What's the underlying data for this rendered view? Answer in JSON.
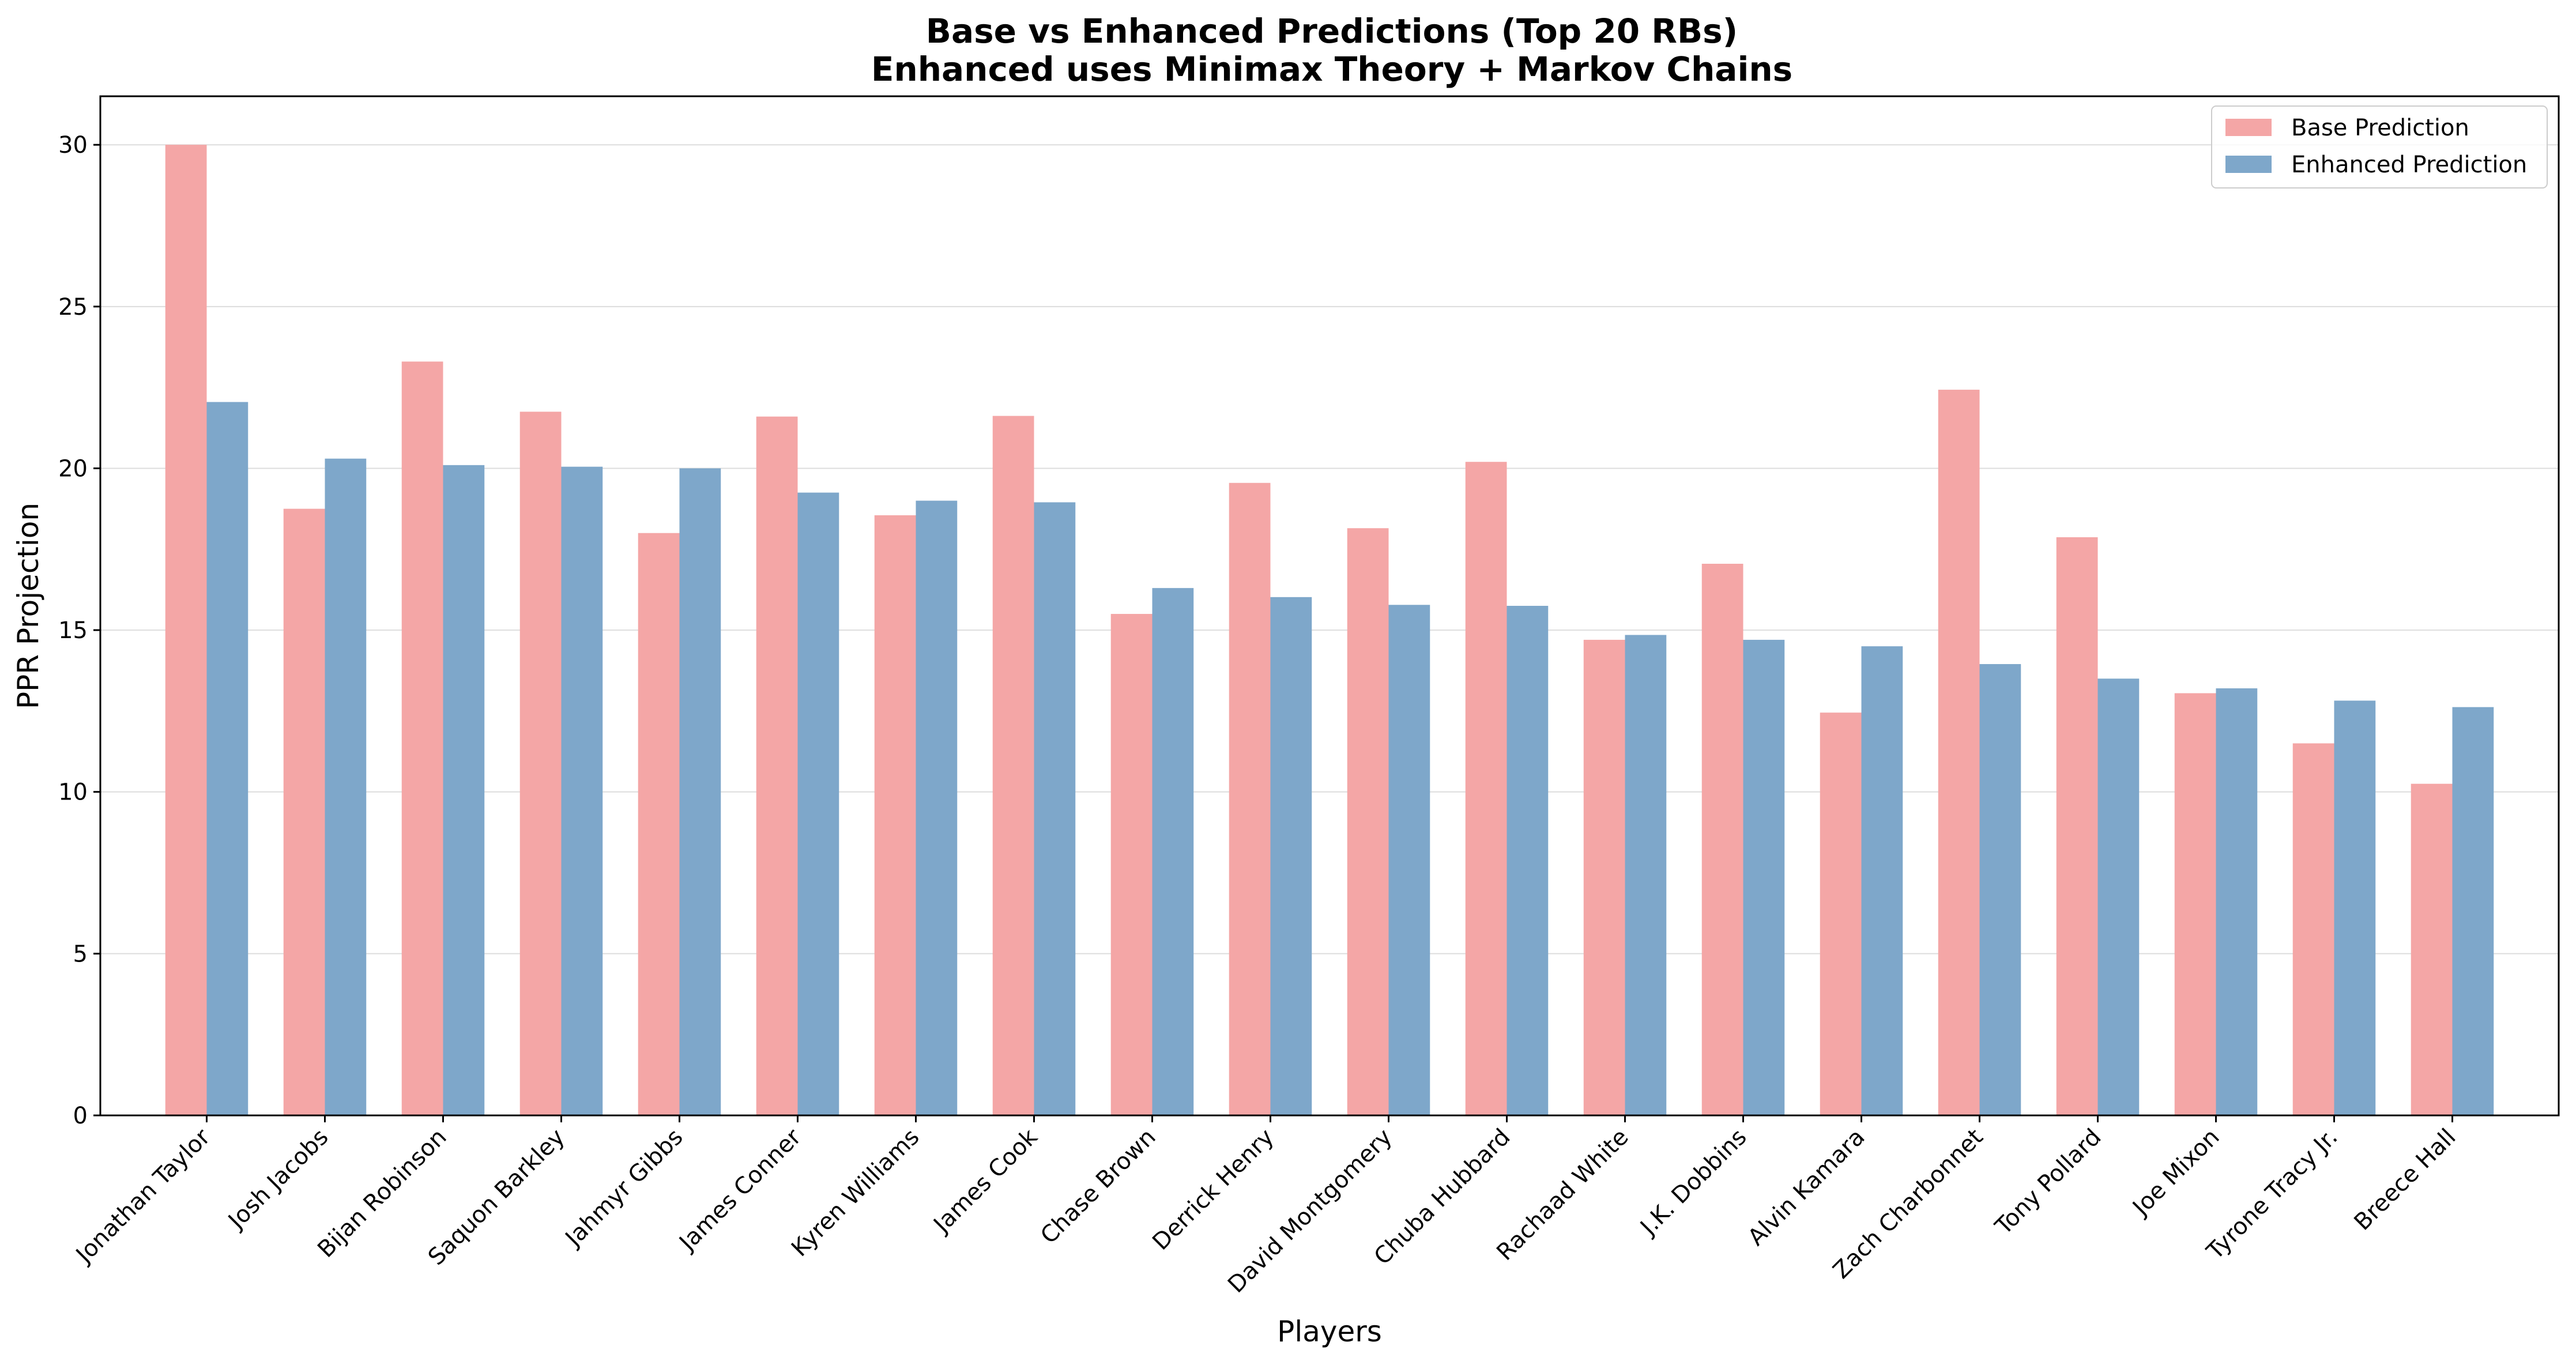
{
  "chart_data": {
    "type": "bar",
    "title": "Base vs Enhanced Predictions (Top 20 RBs)",
    "subtitle": "Enhanced uses Minimax Theory + Markov Chains",
    "xlabel": "Players",
    "ylabel": "PPR Projection",
    "ylim": [
      0,
      31.5
    ],
    "yticks": [
      0,
      5,
      10,
      15,
      20,
      25,
      30
    ],
    "grid": "y",
    "legend_position": "top-right",
    "categories": [
      "Jonathan Taylor",
      "Josh Jacobs",
      "Bijan Robinson",
      "Saquon Barkley",
      "Jahmyr Gibbs",
      "James Conner",
      "Kyren Williams",
      "James Cook",
      "Chase Brown",
      "Derrick Henry",
      "David Montgomery",
      "Chuba Hubbard",
      "Rachaad White",
      "J.K. Dobbins",
      "Alvin Kamara",
      "Zach Charbonnet",
      "Tony Pollard",
      "Joe Mixon",
      "Tyrone Tracy Jr.",
      "Breece Hall"
    ],
    "series": [
      {
        "name": "Base Prediction",
        "color": "#f4a6a6",
        "values": [
          30.0,
          18.75,
          23.3,
          21.75,
          18.0,
          21.6,
          18.55,
          21.62,
          15.5,
          19.55,
          18.15,
          20.2,
          14.7,
          17.05,
          12.45,
          22.43,
          17.87,
          13.05,
          11.5,
          10.25
        ]
      },
      {
        "name": "Enhanced Prediction",
        "color": "#7ea7ca",
        "values": [
          22.05,
          20.3,
          20.1,
          20.05,
          20.0,
          19.25,
          19.0,
          18.95,
          16.3,
          16.02,
          15.78,
          15.75,
          14.85,
          14.7,
          14.5,
          13.95,
          13.5,
          13.2,
          12.82,
          12.62
        ]
      }
    ]
  }
}
